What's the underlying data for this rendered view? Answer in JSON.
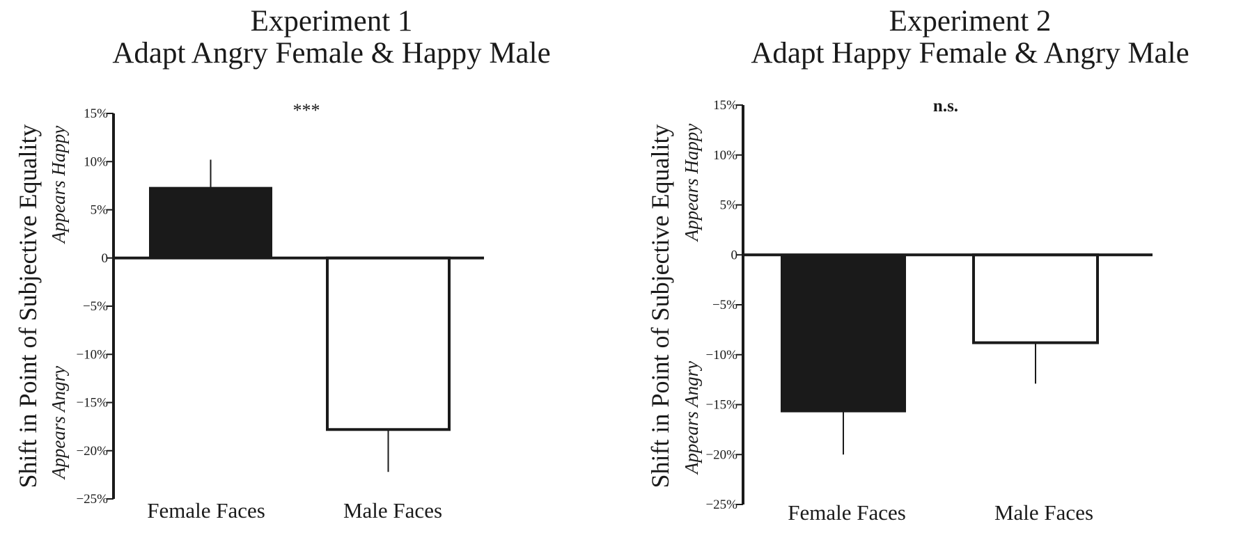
{
  "chart_data": [
    {
      "type": "bar",
      "title": "Experiment 1",
      "subtitle": "Adapt Angry Female & Happy Male",
      "ylabel": "Shift in Point of Subjective Equality",
      "ylabel_upper": "Appears Happy",
      "ylabel_lower": "Appears Angry",
      "categories": [
        "Female Faces",
        "Male Faces"
      ],
      "values": [
        7.3,
        -17.8
      ],
      "errors": [
        2.9,
        4.4
      ],
      "bar_colors": [
        "#1a1a1a",
        "#ffffff"
      ],
      "ylim": [
        -25,
        15
      ],
      "yticks": [
        15,
        10,
        5,
        0,
        -5,
        -10,
        -15,
        -20,
        -25
      ],
      "ytick_labels": [
        "15%",
        "10%",
        "5%",
        "0",
        "−5%",
        "−10%",
        "−15%",
        "−20%",
        "−25%"
      ],
      "annotation": "***",
      "grid": false
    },
    {
      "type": "bar",
      "title": "Experiment 2",
      "subtitle": "Adapt Happy Female & Angry Male",
      "ylabel": "Shift in Point of Subjective Equality",
      "ylabel_upper": "Appears Happy",
      "ylabel_lower": "Appears Angry",
      "categories": [
        "Female Faces",
        "Male Faces"
      ],
      "values": [
        -15.7,
        -8.8
      ],
      "errors": [
        4.3,
        4.1
      ],
      "bar_colors": [
        "#1a1a1a",
        "#ffffff"
      ],
      "ylim": [
        -25,
        15
      ],
      "yticks": [
        15,
        10,
        5,
        0,
        -5,
        -10,
        -15,
        -20,
        -25
      ],
      "ytick_labels": [
        "15%",
        "10%",
        "5%",
        "0",
        "−5%",
        "−10%",
        "−15%",
        "−20%",
        "−25%"
      ],
      "annotation": "n.s.",
      "grid": false
    }
  ]
}
